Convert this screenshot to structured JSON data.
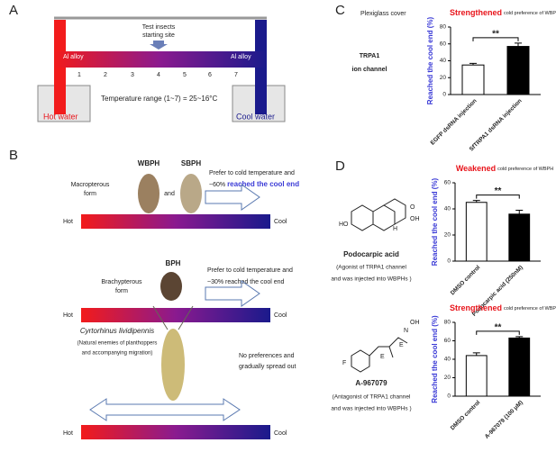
{
  "panel_a": {
    "label": "A",
    "cover": "Plexiglass cover",
    "start": [
      "Test insects",
      "starting site"
    ],
    "alloy_left": "Al alloy",
    "alloy_right": "Al alloy",
    "sites": [
      1,
      2,
      3,
      4,
      5,
      6,
      7
    ],
    "temperature": "Temperature  range (1~7) = 25~16°C",
    "hot": "Hot water",
    "cool": "Cool water"
  },
  "panel_b": {
    "label": "B",
    "hot": [
      "Hot",
      "Hot",
      "Hot"
    ],
    "cool": [
      "Cool",
      "Cool",
      "Cool"
    ],
    "macro": {
      "names": [
        "WBPH",
        "SBPH"
      ],
      "form": [
        "Macropterous",
        "form"
      ],
      "and": "and",
      "text1": "Prefer to cold temperature and",
      "pct": "~60%",
      "text2": "reached the cool end"
    },
    "brachy": {
      "name": "BPH",
      "form": [
        "Brachypterous",
        "form"
      ],
      "text1": "Prefer to cold temperature and",
      "text2": "~30% reached the cool end"
    },
    "enemy": {
      "name": "Cyrtorhinus lividipennis",
      "note": [
        "(Natural enemies of planthoppers",
        "and accompanying migration)"
      ],
      "text": [
        "No preferences and",
        "gradually spread out"
      ]
    }
  },
  "panel_c": {
    "label": "C",
    "target": [
      "TRPA1",
      "ion channel"
    ]
  },
  "panel_d": {
    "label": "D",
    "compounds": [
      {
        "atoms": [
          "HO",
          "OH",
          "O",
          "H"
        ],
        "name": "Podocarpic acid",
        "note": [
          "(Agonist of TRPA1 channel",
          "and was injected into WBPHs )"
        ]
      },
      {
        "atoms": [
          "F",
          "E",
          "E",
          "N",
          "OH"
        ],
        "name": "A-967079",
        "note": [
          "(Antagonist of TRPA1 channel",
          "and was injected into WBPHs )"
        ]
      }
    ]
  },
  "chart_data": [
    {
      "type": "bar",
      "title": "Strengthened",
      "subtitle": "cold preference of WBPH",
      "y_label": "Reached the cool end (%)",
      "categories": [
        "EGFP dsRNA injection",
        "SfTRPA1 dsRNA injection"
      ],
      "values": [
        35,
        57
      ],
      "errors": [
        2,
        4
      ],
      "colors": [
        "#ffffff",
        "#000000"
      ],
      "ylim": [
        0,
        80
      ],
      "yticks": [
        0,
        20,
        40,
        60,
        80
      ],
      "annotation": "**",
      "title_color": "#e8141b"
    },
    {
      "type": "bar",
      "title": "Weakened",
      "subtitle": "cold preference of WBPH",
      "y_label": "Reached the cool end (%)",
      "categories": [
        "DMSO control",
        "Podocarpic acid (250nM)"
      ],
      "values": [
        45,
        36
      ],
      "errors": [
        1.5,
        3
      ],
      "colors": [
        "#ffffff",
        "#000000"
      ],
      "ylim": [
        0,
        60
      ],
      "yticks": [
        0,
        20,
        40,
        60
      ],
      "annotation": "**",
      "title_color": "#e8141b"
    },
    {
      "type": "bar",
      "title": "Strengthened",
      "subtitle": "cold preference of WBPH",
      "y_label": "Reached the cool end (%)",
      "categories": [
        "DMSO control",
        "A-967079 (100 μM)"
      ],
      "values": [
        44,
        63
      ],
      "errors": [
        3,
        1.5
      ],
      "colors": [
        "#ffffff",
        "#000000"
      ],
      "ylim": [
        0,
        80
      ],
      "yticks": [
        0,
        20,
        40,
        60,
        80
      ],
      "annotation": "**",
      "title_color": "#e8141b"
    }
  ]
}
